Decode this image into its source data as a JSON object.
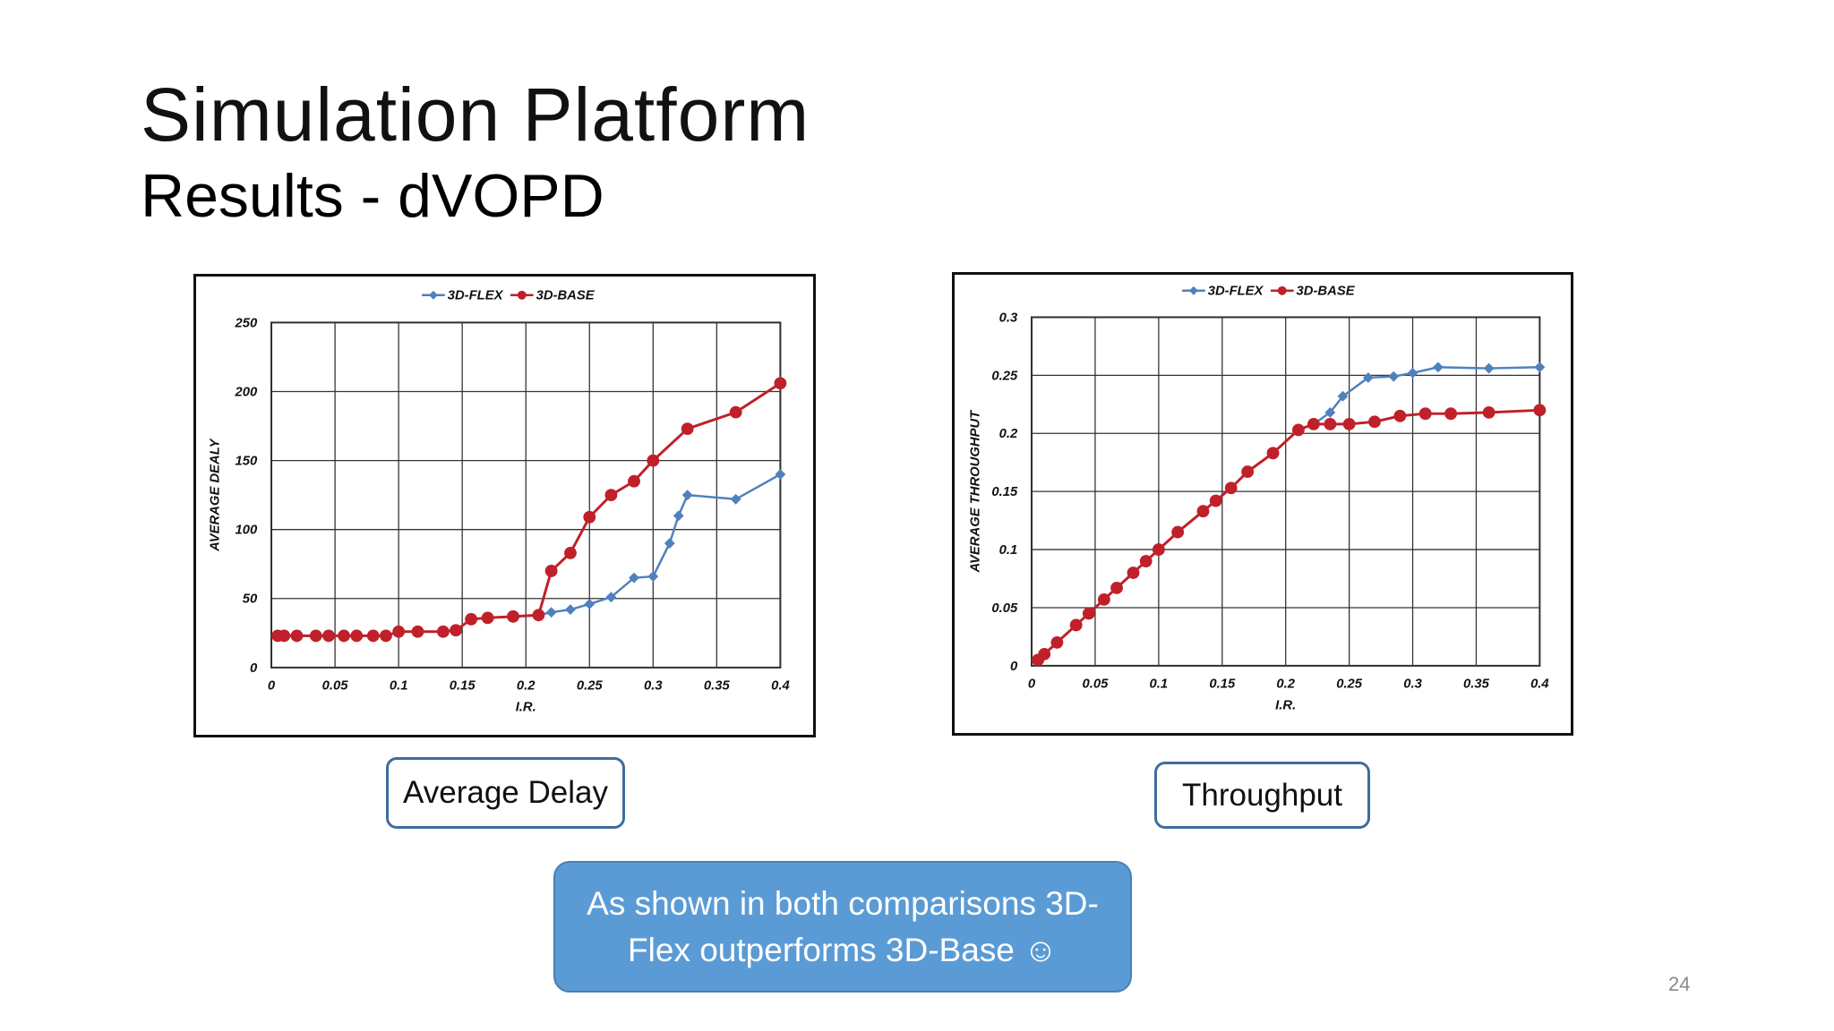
{
  "slide": {
    "title": "Simulation Platform",
    "subtitle": "Results - dVOPD",
    "caption_delay": "Average Delay",
    "caption_throughput": "Throughput",
    "note": "As shown in both comparisons 3D-Flex outperforms 3D-Base ☺",
    "page_number": "24"
  },
  "colors": {
    "flex": "#4f81bd",
    "base": "#c0202a",
    "note_bg": "#5b9bd5",
    "caption_border": "#3f6d9b"
  },
  "chart_data": [
    {
      "type": "line",
      "xlabel": "I.R.",
      "ylabel": "AVERAGE DEALY",
      "xlim": [
        0,
        0.4
      ],
      "ylim": [
        0,
        250
      ],
      "xticks": [
        0,
        0.05,
        0.1,
        0.15,
        0.2,
        0.25,
        0.3,
        0.35,
        0.4
      ],
      "xtick_labels": [
        "0",
        "0.05",
        "0.1",
        "0.15",
        "0.2",
        "0.25",
        "0.3",
        "0.35",
        "0.4"
      ],
      "yticks": [
        0,
        50,
        100,
        150,
        200,
        250
      ],
      "ytick_labels": [
        "0",
        "50",
        "100",
        "150",
        "200",
        "250"
      ],
      "grid": true,
      "legend": "top",
      "series": [
        {
          "name": "3D-FLEX",
          "marker": "diamond",
          "color": "#4f81bd",
          "x": [
            0.005,
            0.01,
            0.02,
            0.035,
            0.045,
            0.057,
            0.067,
            0.08,
            0.09,
            0.1,
            0.115,
            0.135,
            0.145,
            0.157,
            0.17,
            0.19,
            0.21,
            0.22,
            0.235,
            0.25,
            0.267,
            0.285,
            0.3,
            0.313,
            0.32,
            0.327,
            0.365,
            0.4
          ],
          "y": [
            23,
            23,
            23,
            23,
            23,
            23,
            23,
            23,
            23,
            26,
            26,
            26,
            27,
            35,
            36,
            37,
            38,
            40,
            42,
            46,
            51,
            65,
            66,
            90,
            110,
            125,
            122,
            140
          ]
        },
        {
          "name": "3D-BASE",
          "marker": "circle",
          "color": "#c0202a",
          "x": [
            0.005,
            0.01,
            0.02,
            0.035,
            0.045,
            0.057,
            0.067,
            0.08,
            0.09,
            0.1,
            0.115,
            0.135,
            0.145,
            0.157,
            0.17,
            0.19,
            0.21,
            0.22,
            0.235,
            0.25,
            0.267,
            0.285,
            0.3,
            0.327,
            0.365,
            0.4
          ],
          "y": [
            23,
            23,
            23,
            23,
            23,
            23,
            23,
            23,
            23,
            26,
            26,
            26,
            27,
            35,
            36,
            37,
            38,
            70,
            83,
            109,
            125,
            135,
            150,
            173,
            185,
            206
          ]
        }
      ]
    },
    {
      "type": "line",
      "xlabel": "I.R.",
      "ylabel": "AVERAGE THROUGHPUT",
      "xlim": [
        0,
        0.4
      ],
      "ylim": [
        0,
        0.3
      ],
      "xticks": [
        0,
        0.05,
        0.1,
        0.15,
        0.2,
        0.25,
        0.3,
        0.35,
        0.4
      ],
      "xtick_labels": [
        "0",
        "0.05",
        "0.1",
        "0.15",
        "0.2",
        "0.25",
        "0.3",
        "0.35",
        "0.4"
      ],
      "yticks": [
        0,
        0.05,
        0.1,
        0.15,
        0.2,
        0.25,
        0.3
      ],
      "ytick_labels": [
        "0",
        "0.05",
        "0.1",
        "0.15",
        "0.2",
        "0.25",
        "0.3"
      ],
      "grid": true,
      "legend": "top",
      "series": [
        {
          "name": "3D-FLEX",
          "marker": "diamond",
          "color": "#4f81bd",
          "x": [
            0.005,
            0.01,
            0.02,
            0.035,
            0.045,
            0.057,
            0.067,
            0.08,
            0.09,
            0.1,
            0.115,
            0.135,
            0.145,
            0.157,
            0.17,
            0.19,
            0.21,
            0.222,
            0.235,
            0.245,
            0.265,
            0.285,
            0.3,
            0.32,
            0.36,
            0.4
          ],
          "y": [
            0.005,
            0.01,
            0.02,
            0.035,
            0.045,
            0.057,
            0.067,
            0.08,
            0.09,
            0.1,
            0.115,
            0.133,
            0.142,
            0.153,
            0.167,
            0.183,
            0.203,
            0.208,
            0.218,
            0.232,
            0.248,
            0.249,
            0.252,
            0.257,
            0.256,
            0.257
          ]
        },
        {
          "name": "3D-BASE",
          "marker": "circle",
          "color": "#c0202a",
          "x": [
            0.005,
            0.01,
            0.02,
            0.035,
            0.045,
            0.057,
            0.067,
            0.08,
            0.09,
            0.1,
            0.115,
            0.135,
            0.145,
            0.157,
            0.17,
            0.19,
            0.21,
            0.222,
            0.235,
            0.25,
            0.27,
            0.29,
            0.31,
            0.33,
            0.36,
            0.4
          ],
          "y": [
            0.005,
            0.01,
            0.02,
            0.035,
            0.045,
            0.057,
            0.067,
            0.08,
            0.09,
            0.1,
            0.115,
            0.133,
            0.142,
            0.153,
            0.167,
            0.183,
            0.203,
            0.208,
            0.208,
            0.208,
            0.21,
            0.215,
            0.217,
            0.217,
            0.218,
            0.22
          ]
        }
      ]
    }
  ]
}
